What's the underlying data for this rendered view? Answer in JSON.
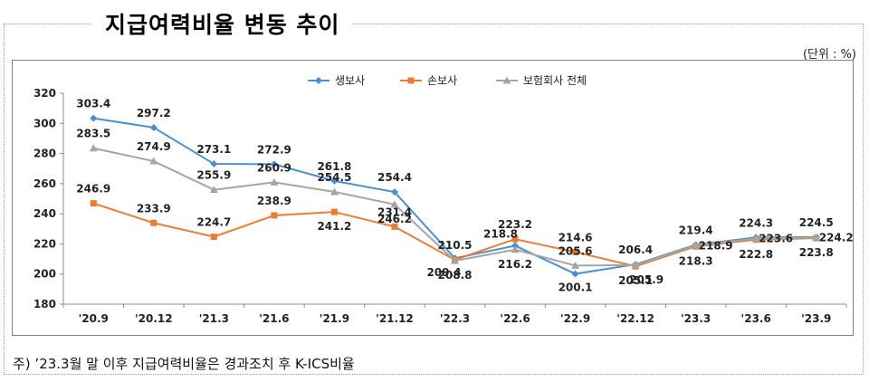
{
  "header": {
    "title": "지급여력비율 변동 추이",
    "unit": "(단위 : %)"
  },
  "footnote": "주) ’23.3월 말 이후 지급여력비율은 경과조치 후 K-ICS비율",
  "chart_data": {
    "type": "line",
    "title": "지급여력비율 변동 추이",
    "xlabel": "",
    "ylabel": "",
    "ylim": [
      180,
      320
    ],
    "yticks": [
      180,
      200,
      220,
      240,
      260,
      280,
      300,
      320
    ],
    "grid": false,
    "legend": "top-center",
    "categories": [
      "'20.9",
      "'20.12",
      "'21.3",
      "'21.6",
      "'21.9",
      "'21.12",
      "'22.3",
      "'22.6",
      "'22.9",
      "'22.12",
      "'23.3",
      "'23.6",
      "'23.9"
    ],
    "series": [
      {
        "name": "생보사",
        "color": "#4a8fcf",
        "marker": "diamond",
        "values": [
          303.4,
          297.2,
          273.1,
          272.9,
          261.8,
          254.4,
          210.5,
          218.8,
          200.1,
          206.4,
          219.4,
          224.3,
          224.5
        ]
      },
      {
        "name": "손보사",
        "color": "#ec7c30",
        "marker": "square",
        "values": [
          246.9,
          233.9,
          224.7,
          238.9,
          241.2,
          231.4,
          209.4,
          223.2,
          214.6,
          205.1,
          218.3,
          222.8,
          223.8
        ]
      },
      {
        "name": "보험회사 전체",
        "color": "#a5a5a5",
        "marker": "triangle",
        "values": [
          283.5,
          274.9,
          255.9,
          260.9,
          254.5,
          246.2,
          208.8,
          216.2,
          205.6,
          205.9,
          218.9,
          223.6,
          224.2
        ]
      }
    ]
  }
}
